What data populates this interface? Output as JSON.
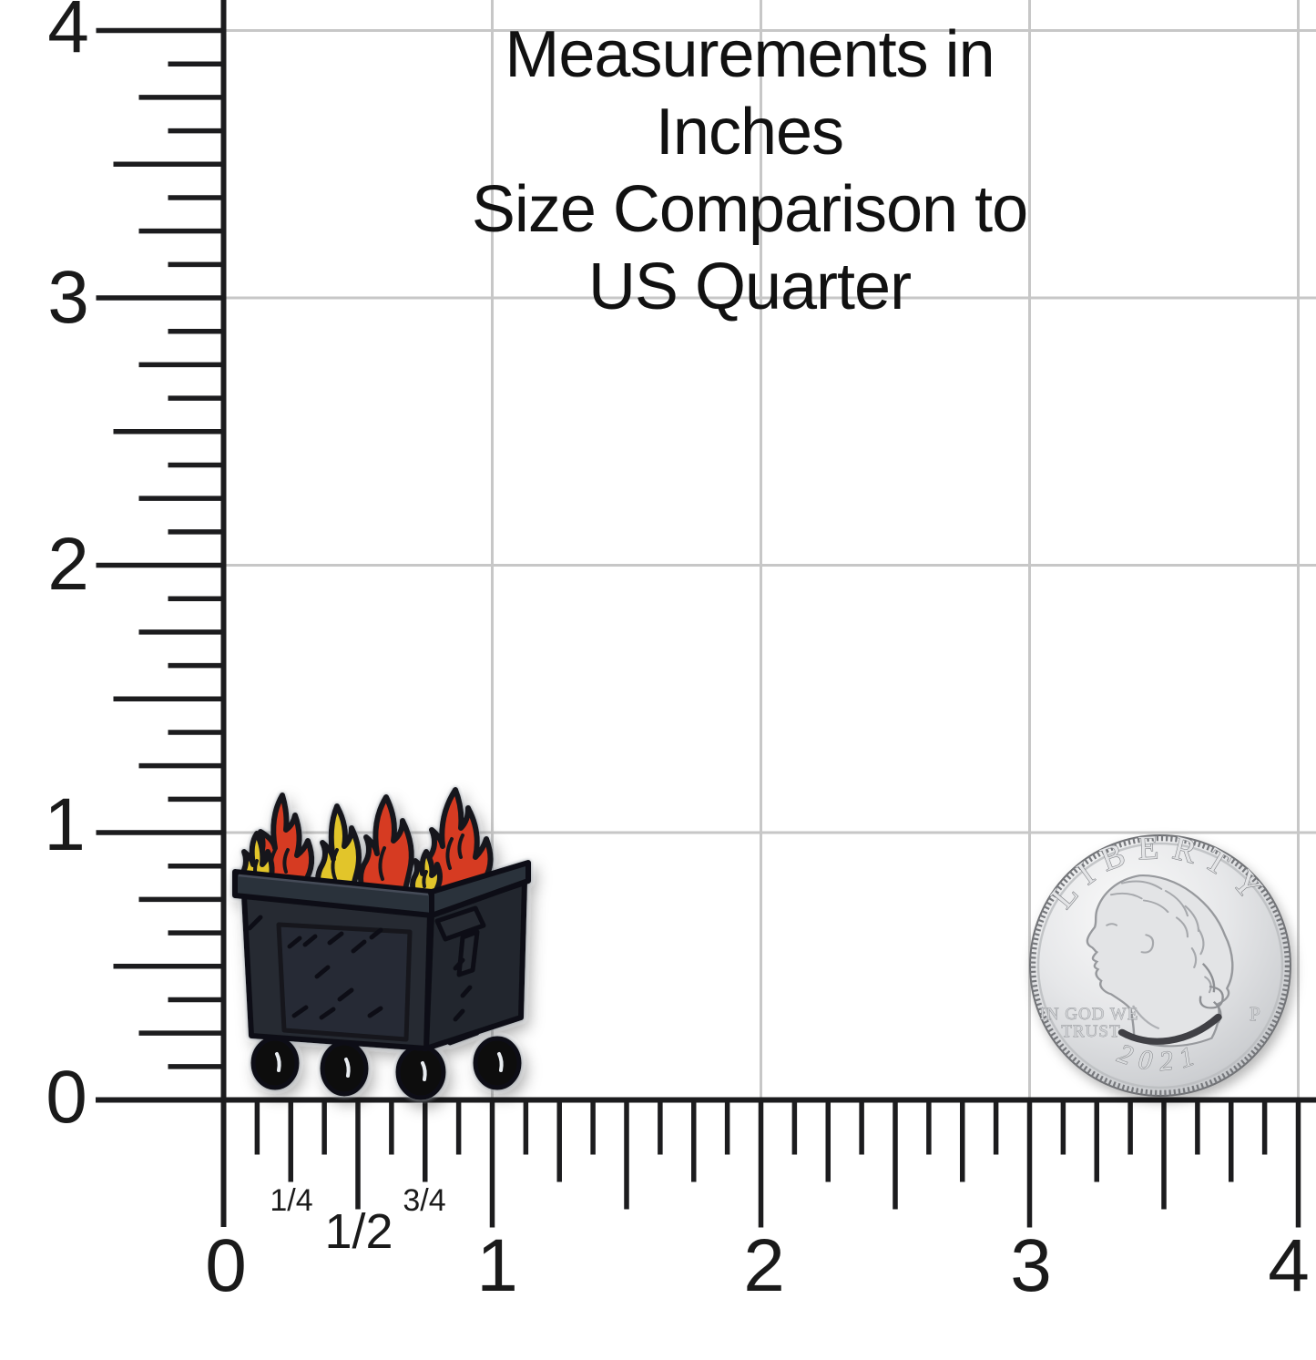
{
  "title": {
    "line1": "Measurements in Inches",
    "line2": "Size Comparison to US Quarter"
  },
  "ruler": {
    "unit": "inches",
    "range": [
      0,
      4
    ],
    "left_labels": [
      "4",
      "3",
      "2",
      "1",
      "0"
    ],
    "bottom_labels": [
      "0",
      "1",
      "2",
      "3",
      "4"
    ],
    "fractions": {
      "quarter": "1/4",
      "half": "1/2",
      "three_quarter": "3/4"
    }
  },
  "coin": {
    "legend": "LIBERTY",
    "motto_line1": "IN GOD WE",
    "motto_line2": "TRUST",
    "mint_mark": "P",
    "year": "2021"
  },
  "colors": {
    "background": "#ffffff",
    "grid": "#c7c7c7",
    "ruler": "#1c1c1e",
    "flame_red": "#d63b20",
    "flame_yellow": "#e2c52b",
    "flame_outline": "#16181d",
    "dumpster_body": "#262b33",
    "dumpster_side": "#20252d",
    "dumpster_rim": "#2b313b",
    "wheel": "#0b0d11",
    "coin_edge": "#6f7174",
    "coin_field_light": "#f7f7f8",
    "coin_field_dark": "#b5b7ba"
  }
}
